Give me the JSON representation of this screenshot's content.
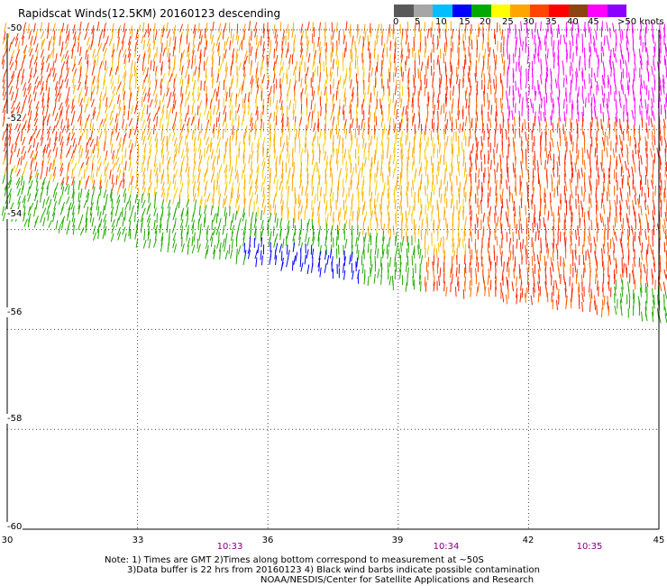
{
  "title": "Rapidscat Winds(12.5KM) 20160123 descending",
  "legend": {
    "colors": [
      "#595959",
      "#a6a6a6",
      "#00bfff",
      "#0000ff",
      "#00aa00",
      "#ffff00",
      "#ffa500",
      "#ff4500",
      "#ff0000",
      "#8b4513",
      "#ff00ff",
      "#8b00ff"
    ],
    "labels": [
      "0",
      "5",
      "10",
      "15",
      "20",
      "25",
      "30",
      "35",
      "40",
      "45",
      ">50 knots"
    ]
  },
  "map": {
    "lat_labels": [
      "-50",
      "-52",
      "-54",
      "-56",
      "-58",
      "-60"
    ],
    "lon_labels": [
      "30",
      "33",
      "36",
      "39",
      "42",
      "45"
    ],
    "times": [
      "10:33",
      "10:34",
      "10:35"
    ],
    "lat_range": [
      -60,
      -50
    ],
    "lon_range": [
      30,
      45
    ],
    "lat_grid": [
      -52,
      -54,
      -56,
      -58
    ],
    "lon_grid": [
      33,
      36,
      39,
      42
    ]
  },
  "notes": [
    "Note: 1) Times are GMT 2)Times along bottom correspond to measurement at ~50S",
    "3)Data buffer is 22 hrs from 20160123 4) Black wind barbs indicate possible contamination",
    "NOAA/NESDIS/Center for Satellite Applications and Research"
  ]
}
